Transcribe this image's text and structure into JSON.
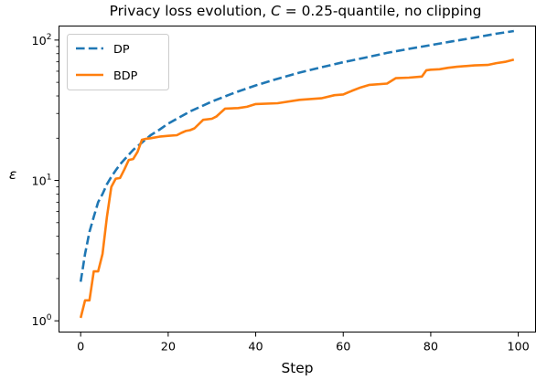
{
  "chart_data": {
    "type": "line",
    "title_main": "Privacy loss evolution, ",
    "title_var": "C",
    "title_rest": " = 0.25-quantile, no clipping",
    "xlabel": "Step",
    "ylabel": "ε",
    "xlim": [
      -4.95,
      103.95
    ],
    "ylim_log10": [
      -0.08,
      2.1
    ],
    "y_scale": "log",
    "grid": false,
    "legend_position": "upper-left",
    "x_ticks": [
      {
        "value": 0,
        "label": "0"
      },
      {
        "value": 20,
        "label": "20"
      },
      {
        "value": 40,
        "label": "40"
      },
      {
        "value": 60,
        "label": "60"
      },
      {
        "value": 80,
        "label": "80"
      },
      {
        "value": 100,
        "label": "100"
      }
    ],
    "y_ticks": [
      {
        "value": 1,
        "base": "10",
        "exp": "0"
      },
      {
        "value": 10,
        "base": "10",
        "exp": "1"
      },
      {
        "value": 100,
        "base": "10",
        "exp": "2"
      }
    ],
    "series": [
      {
        "name": "DP",
        "color": "#1f77b4",
        "dash": true,
        "points": [
          [
            0,
            1.9
          ],
          [
            1,
            3.0
          ],
          [
            2,
            4.3
          ],
          [
            3,
            5.5
          ],
          [
            4,
            7.0
          ],
          [
            5,
            8.0
          ],
          [
            6,
            9.4
          ],
          [
            7,
            10.6
          ],
          [
            8,
            11.8
          ],
          [
            9,
            13.0
          ],
          [
            10,
            14.1
          ],
          [
            12,
            16.5
          ],
          [
            14,
            18.6
          ],
          [
            16,
            21.0
          ],
          [
            18,
            23.0
          ],
          [
            20,
            25.4
          ],
          [
            25,
            31.0
          ],
          [
            30,
            36.5
          ],
          [
            35,
            42.0
          ],
          [
            40,
            47.5
          ],
          [
            45,
            53.0
          ],
          [
            50,
            58.6
          ],
          [
            55,
            64.0
          ],
          [
            60,
            69.5
          ],
          [
            65,
            75.0
          ],
          [
            70,
            81.0
          ],
          [
            75,
            86.5
          ],
          [
            80,
            92.0
          ],
          [
            85,
            98.0
          ],
          [
            90,
            104.0
          ],
          [
            95,
            111.0
          ],
          [
            99,
            116.0
          ]
        ]
      },
      {
        "name": "BDP",
        "color": "#ff7f0e",
        "dash": false,
        "points": [
          [
            0,
            1.05
          ],
          [
            1,
            1.4
          ],
          [
            2,
            1.4
          ],
          [
            3,
            2.25
          ],
          [
            4,
            2.25
          ],
          [
            5,
            3.0
          ],
          [
            6,
            5.5
          ],
          [
            7,
            9.0
          ],
          [
            8,
            10.3
          ],
          [
            9,
            10.4
          ],
          [
            10,
            12.0
          ],
          [
            11,
            14.0
          ],
          [
            12,
            14.2
          ],
          [
            13,
            16.0
          ],
          [
            14,
            19.5
          ],
          [
            15,
            19.8
          ],
          [
            16,
            20.0
          ],
          [
            18,
            20.5
          ],
          [
            20,
            20.8
          ],
          [
            22,
            21.0
          ],
          [
            23,
            21.8
          ],
          [
            24,
            22.5
          ],
          [
            25,
            22.8
          ],
          [
            26,
            23.5
          ],
          [
            28,
            27.0
          ],
          [
            30,
            27.5
          ],
          [
            31,
            28.5
          ],
          [
            33,
            32.5
          ],
          [
            36,
            32.8
          ],
          [
            38,
            33.5
          ],
          [
            40,
            35.0
          ],
          [
            45,
            35.5
          ],
          [
            50,
            37.5
          ],
          [
            55,
            38.5
          ],
          [
            58,
            40.5
          ],
          [
            60,
            41.0
          ],
          [
            62,
            43.5
          ],
          [
            64,
            46.0
          ],
          [
            66,
            48.0
          ],
          [
            70,
            49.0
          ],
          [
            72,
            53.5
          ],
          [
            75,
            54.0
          ],
          [
            78,
            55.0
          ],
          [
            79,
            61.0
          ],
          [
            80,
            61.5
          ],
          [
            82,
            62.0
          ],
          [
            84,
            63.5
          ],
          [
            86,
            64.5
          ],
          [
            90,
            66.0
          ],
          [
            93,
            66.5
          ],
          [
            95,
            68.5
          ],
          [
            97,
            70.0
          ],
          [
            99,
            72.5
          ]
        ]
      }
    ]
  }
}
